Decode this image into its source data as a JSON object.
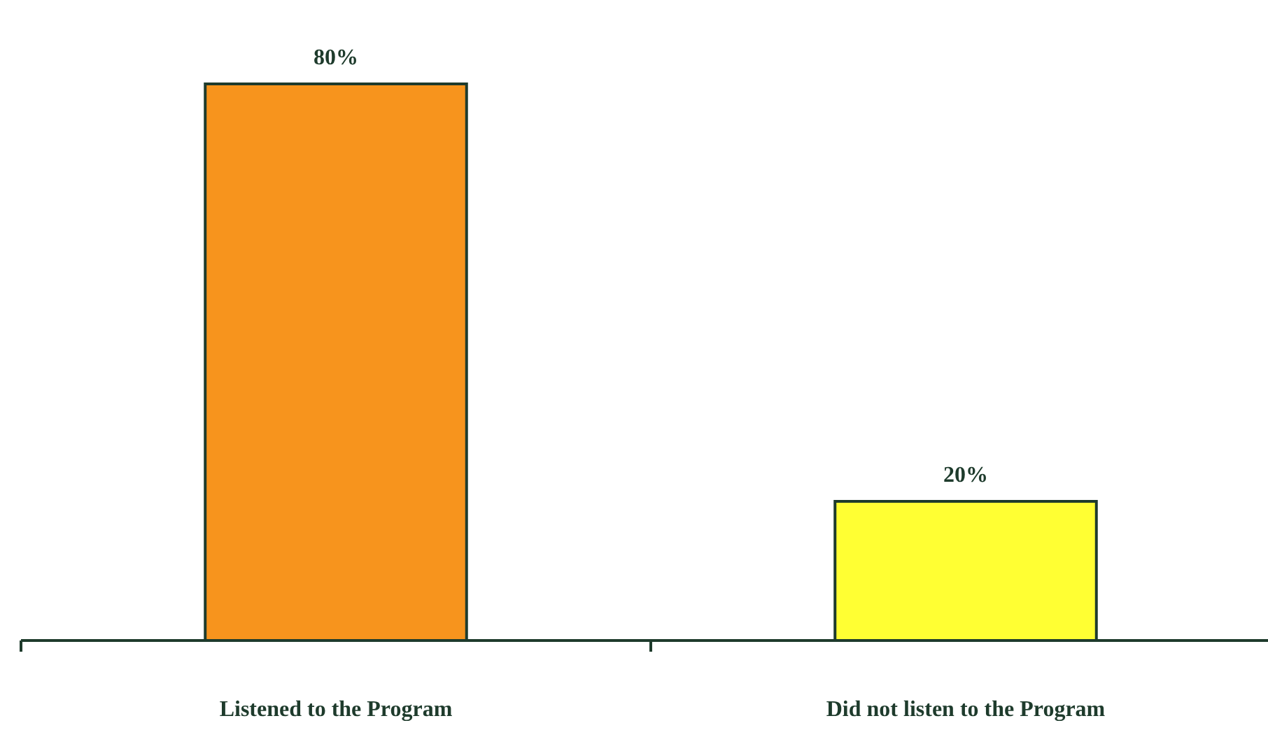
{
  "chart_data": {
    "type": "bar",
    "categories": [
      "Listened to the Program",
      "Did not listen to the Program"
    ],
    "values": [
      80,
      20
    ],
    "colors": [
      "#f7941d",
      "#ffff33"
    ],
    "value_labels": [
      "80%",
      "20%"
    ]
  }
}
